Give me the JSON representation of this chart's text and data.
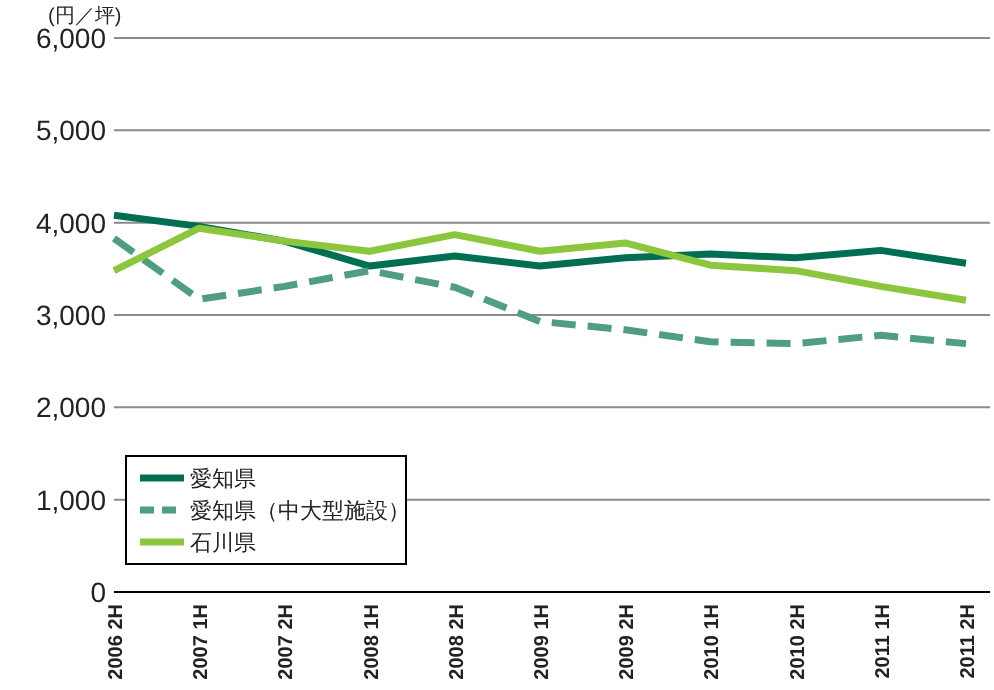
{
  "chart_data": {
    "type": "line",
    "ylabel": "(円／坪)",
    "categories": [
      "2006 2H",
      "2007 1H",
      "2007 2H",
      "2008 1H",
      "2008 2H",
      "2009 1H",
      "2009 2H",
      "2010 1H",
      "2010 2H",
      "2011 1H",
      "2011 2H"
    ],
    "series": [
      {
        "name": "愛知県",
        "color": "#006f51",
        "line_style": "solid",
        "values": [
          4080,
          3960,
          3800,
          3530,
          3640,
          3530,
          3620,
          3660,
          3620,
          3700,
          3560
        ]
      },
      {
        "name": "愛知県（中大型施設）",
        "color": "#4f9e82",
        "line_style": "dashed",
        "values": [
          3830,
          3170,
          3310,
          3480,
          3300,
          2930,
          2840,
          2710,
          2690,
          2780,
          2690
        ]
      },
      {
        "name": "石川県",
        "color": "#8cc63f",
        "line_style": "solid",
        "values": [
          3480,
          3940,
          3800,
          3690,
          3870,
          3690,
          3780,
          3540,
          3480,
          3310,
          3160
        ]
      }
    ],
    "ylim": [
      0,
      6000
    ],
    "yticks": [
      {
        "value": 0,
        "label": "0"
      },
      {
        "value": 1000,
        "label": "1,000"
      },
      {
        "value": 2000,
        "label": "2,000"
      },
      {
        "value": 3000,
        "label": "3,000"
      },
      {
        "value": 4000,
        "label": "4,000"
      },
      {
        "value": 5000,
        "label": "5,000"
      },
      {
        "value": 6000,
        "label": "6,000"
      }
    ],
    "grid": "y",
    "legend": "bottom left"
  }
}
